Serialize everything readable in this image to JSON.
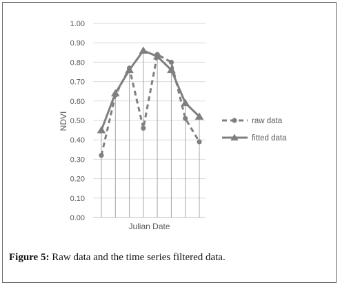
{
  "chart_data": {
    "type": "line",
    "ylabel": "NDVI",
    "xlabel": "Julian Date",
    "ylim": [
      0,
      1
    ],
    "yticks": [
      "0.00",
      "0.10",
      "0.20",
      "0.30",
      "0.40",
      "0.50",
      "0.60",
      "0.70",
      "0.80",
      "0.90",
      "1.00"
    ],
    "grid": "horizontal",
    "legend_position": "right",
    "n_points": 8,
    "series": [
      {
        "name": "raw data",
        "style": "dashed",
        "marker": "circle",
        "color": "#7f7f7f",
        "values": [
          0.32,
          0.63,
          0.77,
          0.46,
          0.84,
          0.8,
          0.51,
          0.39
        ]
      },
      {
        "name": "fitted data",
        "style": "solid",
        "marker": "triangle",
        "color": "#7f7f7f",
        "values": [
          0.45,
          0.64,
          0.76,
          0.86,
          0.83,
          0.76,
          0.59,
          0.52
        ]
      }
    ]
  },
  "caption": {
    "label": "Figure 5:",
    "text": " Raw data and the time series filtered data."
  }
}
